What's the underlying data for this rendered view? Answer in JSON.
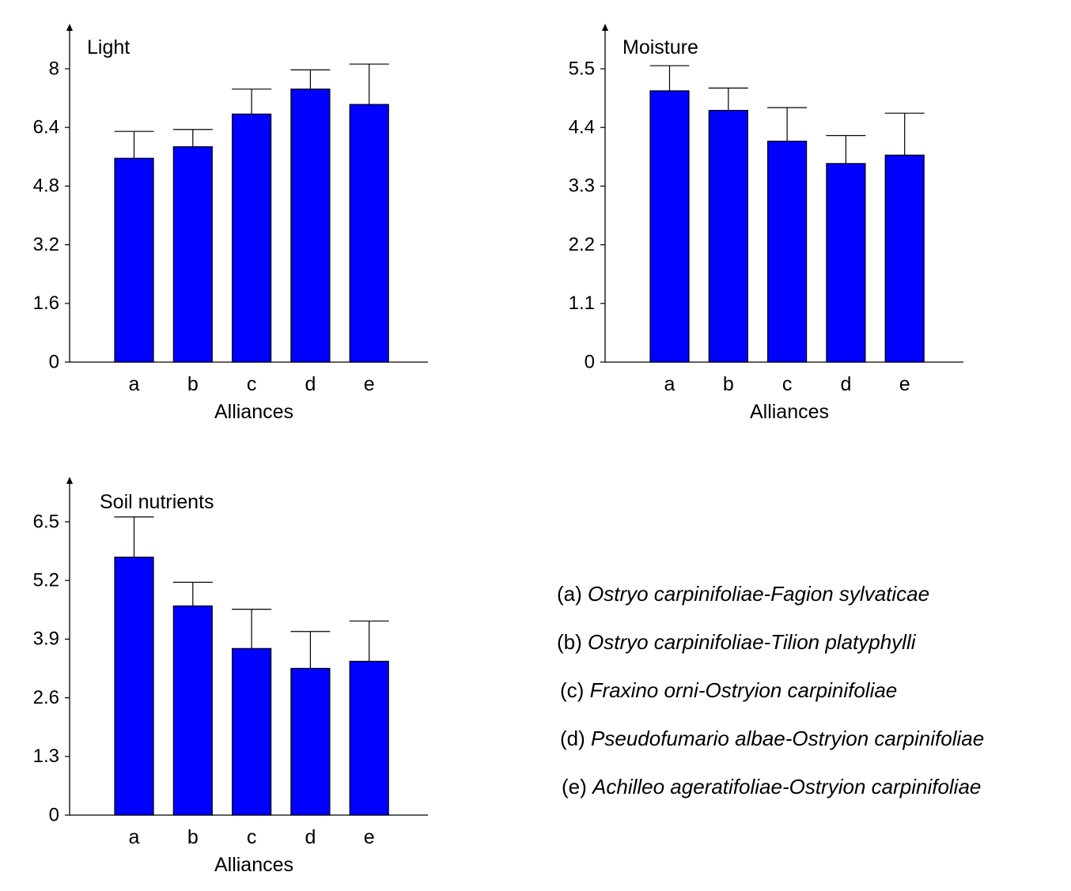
{
  "colors": {
    "bar": "#0000ff",
    "bar_outline": "#000000",
    "axis": "#000000",
    "background": "#ffffff"
  },
  "chart_data": [
    {
      "type": "bar",
      "title": "Light",
      "xlabel": "Alliances",
      "ylabel": "",
      "categories": [
        "a",
        "b",
        "c",
        "d",
        "e"
      ],
      "values": [
        5.3,
        5.6,
        6.45,
        7.1,
        6.7
      ],
      "error_upper": [
        6.0,
        6.05,
        7.1,
        7.6,
        7.75
      ],
      "yticks": [
        "0",
        "1.6",
        "3.2",
        "4.8",
        "6.4",
        "8"
      ],
      "ylim": [
        0,
        8.8
      ]
    },
    {
      "type": "bar",
      "title": "Moisture",
      "xlabel": "Alliances",
      "ylabel": "",
      "categories": [
        "a",
        "b",
        "c",
        "d",
        "e"
      ],
      "values": [
        4.85,
        4.5,
        3.95,
        3.55,
        3.7
      ],
      "error_upper": [
        5.3,
        4.9,
        4.55,
        4.05,
        4.45
      ],
      "yticks": [
        "0",
        "1.1",
        "2.2",
        "3.3",
        "4.4",
        "5.5"
      ],
      "ylim": [
        0,
        6.05
      ]
    },
    {
      "type": "bar",
      "title": "Soil nutrients",
      "xlabel": "Alliances",
      "ylabel": "",
      "categories": [
        "a",
        "b",
        "c",
        "d",
        "e"
      ],
      "values": [
        5.45,
        4.42,
        3.52,
        3.1,
        3.25
      ],
      "error_upper": [
        6.3,
        4.92,
        4.35,
        3.88,
        4.1
      ],
      "yticks": [
        "0",
        "1.3",
        "2.6",
        "3.9",
        "5.2",
        "6.5"
      ],
      "ylim": [
        0,
        7.15
      ]
    }
  ],
  "legend": [
    {
      "key": "(a)",
      "name": "Ostryo carpinifoliae-Fagion sylvaticae"
    },
    {
      "key": "(b)",
      "name": "Ostryo carpinifoliae-Tilion platyphylli"
    },
    {
      "key": "(c)",
      "name": "Fraxino orni-Ostryion carpinifoliae"
    },
    {
      "key": "(d)",
      "name": "Pseudofumario albae-Ostryion carpinifoliae"
    },
    {
      "key": "(e)",
      "name": "Achilleo ageratifoliae-Ostryion carpinifoliae"
    }
  ]
}
